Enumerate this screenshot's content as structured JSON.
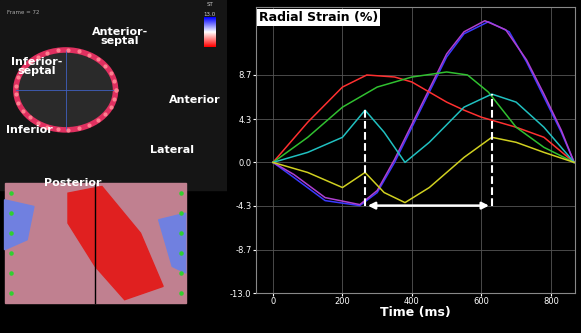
{
  "chart_data": {
    "type": "line",
    "title": "Radial Strain (%)",
    "x_label": "Time (ms)",
    "xlim": [
      -50,
      870
    ],
    "xticks": [
      0,
      200,
      400,
      600,
      800
    ],
    "ylim": [
      -13.0,
      15.5
    ],
    "yticks": [
      -13.0,
      -8.7,
      -4.3,
      0.0,
      4.3,
      8.7
    ],
    "grid": true,
    "tick_labels": true,
    "series": [
      {
        "color": "#3a3aff",
        "x": [
          0,
          60,
          150,
          250,
          300,
          350,
          400,
          450,
          500,
          550,
          620,
          680,
          730,
          780,
          830,
          867
        ],
        "values": [
          0,
          -1.5,
          -3.8,
          -4.3,
          -3.0,
          0.0,
          3.5,
          7.0,
          10.5,
          12.8,
          14.0,
          13.0,
          10.0,
          6.5,
          3.0,
          0
        ]
      },
      {
        "color": "#b040d0",
        "x": [
          0,
          60,
          150,
          250,
          300,
          350,
          400,
          450,
          500,
          550,
          610,
          670,
          730,
          780,
          830,
          867
        ],
        "values": [
          0,
          -1.2,
          -3.5,
          -4.2,
          -2.8,
          0.3,
          3.8,
          7.3,
          10.8,
          13.0,
          14.1,
          13.2,
          10.2,
          6.8,
          3.2,
          0
        ]
      },
      {
        "color": "#ff3030",
        "x": [
          0,
          100,
          200,
          270,
          350,
          400,
          450,
          500,
          550,
          600,
          700,
          780,
          867
        ],
        "values": [
          0,
          4.0,
          7.5,
          8.7,
          8.5,
          8.0,
          7.0,
          6.0,
          5.2,
          4.5,
          3.5,
          2.5,
          0
        ]
      },
      {
        "color": "#30c030",
        "x": [
          0,
          100,
          200,
          300,
          400,
          500,
          560,
          620,
          700,
          780,
          867
        ],
        "values": [
          0,
          2.5,
          5.5,
          7.5,
          8.5,
          9.0,
          8.7,
          7.0,
          3.5,
          1.5,
          0
        ]
      },
      {
        "color": "#20c0c0",
        "x": [
          0,
          100,
          200,
          265,
          320,
          380,
          450,
          550,
          630,
          700,
          780,
          867
        ],
        "values": [
          0,
          1.0,
          2.5,
          5.2,
          3.0,
          0.0,
          2.0,
          5.5,
          6.8,
          6.0,
          3.5,
          0
        ]
      },
      {
        "color": "#d0d020",
        "x": [
          0,
          100,
          200,
          265,
          320,
          380,
          450,
          550,
          630,
          700,
          780,
          867
        ],
        "values": [
          0,
          -1.0,
          -2.5,
          -1.0,
          -3.0,
          -4.0,
          -2.5,
          0.5,
          2.5,
          2.0,
          1.0,
          0
        ]
      }
    ],
    "interval": {
      "start": 265,
      "end": 630,
      "level": -4.3,
      "start_top": 5.2,
      "end_top": 6.8
    }
  },
  "segments": [
    "Anterior-\nseptal",
    "Inferior-\nseptal",
    "Anterior",
    "Inferior",
    "Lateral",
    "Posterior"
  ],
  "frame_label": "Frame = 72",
  "colorbar": {
    "label": "ST",
    "max": 13.0
  }
}
